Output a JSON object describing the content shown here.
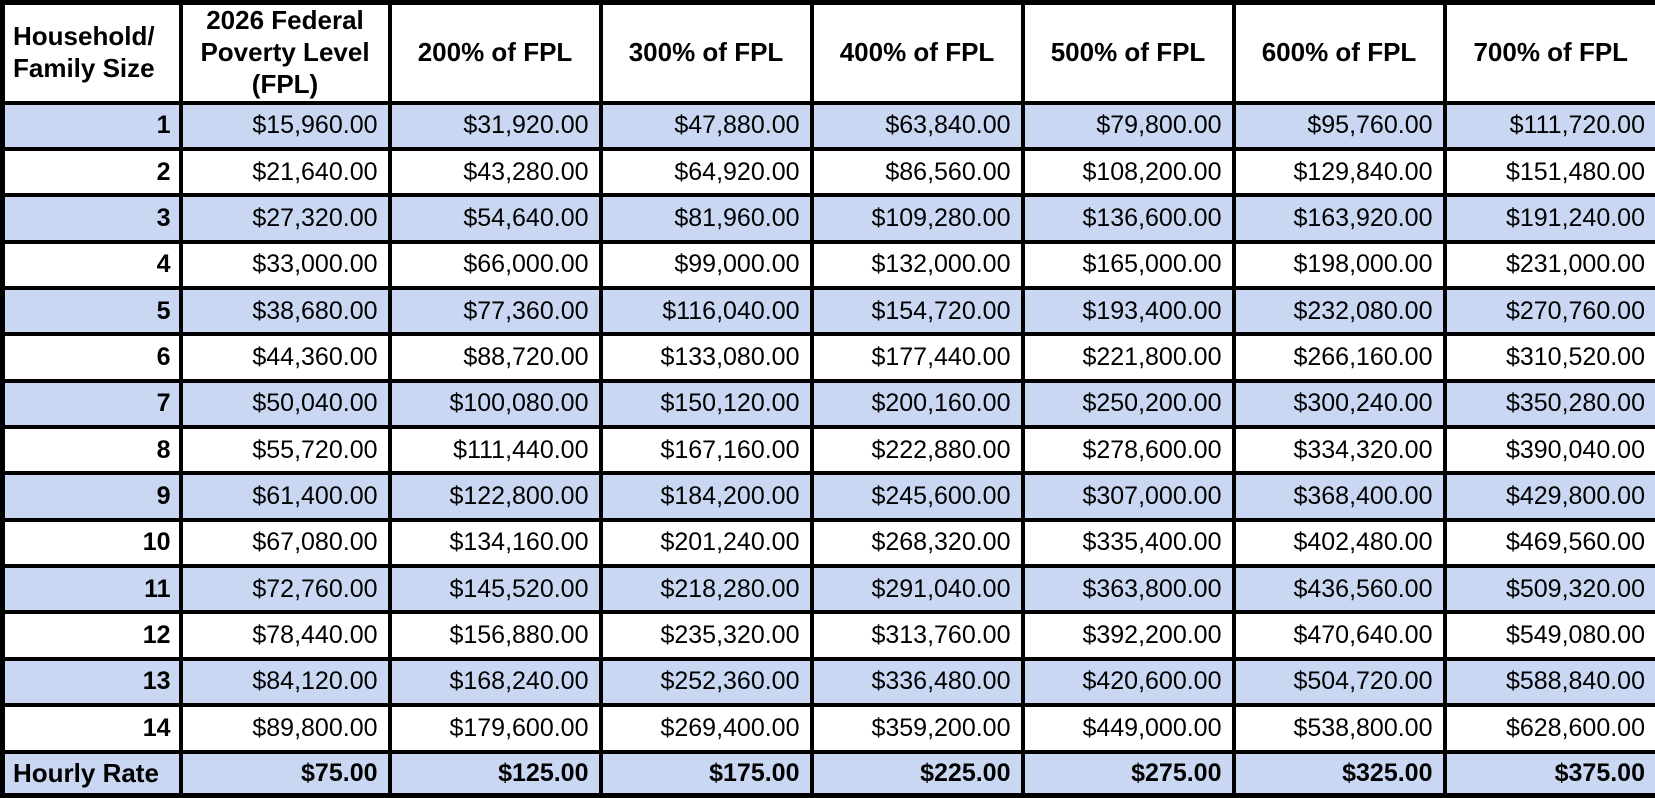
{
  "table": {
    "headers": [
      "Household/\nFamily Size",
      "2026 Federal\nPoverty Level\n(FPL)",
      "200% of FPL",
      "300% of FPL",
      "400% of FPL",
      "500% of FPL",
      "600% of FPL",
      "700% of FPL"
    ],
    "header_names": [
      "household-family-size",
      "fpl-2026",
      "fpl-200pct",
      "fpl-300pct",
      "fpl-400pct",
      "fpl-500pct",
      "fpl-600pct",
      "fpl-700pct"
    ],
    "rows": [
      {
        "size": "1",
        "values": [
          "$15,960.00",
          "$31,920.00",
          "$47,880.00",
          "$63,840.00",
          "$79,800.00",
          "$95,760.00",
          "$111,720.00"
        ]
      },
      {
        "size": "2",
        "values": [
          "$21,640.00",
          "$43,280.00",
          "$64,920.00",
          "$86,560.00",
          "$108,200.00",
          "$129,840.00",
          "$151,480.00"
        ]
      },
      {
        "size": "3",
        "values": [
          "$27,320.00",
          "$54,640.00",
          "$81,960.00",
          "$109,280.00",
          "$136,600.00",
          "$163,920.00",
          "$191,240.00"
        ]
      },
      {
        "size": "4",
        "values": [
          "$33,000.00",
          "$66,000.00",
          "$99,000.00",
          "$132,000.00",
          "$165,000.00",
          "$198,000.00",
          "$231,000.00"
        ]
      },
      {
        "size": "5",
        "values": [
          "$38,680.00",
          "$77,360.00",
          "$116,040.00",
          "$154,720.00",
          "$193,400.00",
          "$232,080.00",
          "$270,760.00"
        ]
      },
      {
        "size": "6",
        "values": [
          "$44,360.00",
          "$88,720.00",
          "$133,080.00",
          "$177,440.00",
          "$221,800.00",
          "$266,160.00",
          "$310,520.00"
        ]
      },
      {
        "size": "7",
        "values": [
          "$50,040.00",
          "$100,080.00",
          "$150,120.00",
          "$200,160.00",
          "$250,200.00",
          "$300,240.00",
          "$350,280.00"
        ]
      },
      {
        "size": "8",
        "values": [
          "$55,720.00",
          "$111,440.00",
          "$167,160.00",
          "$222,880.00",
          "$278,600.00",
          "$334,320.00",
          "$390,040.00"
        ]
      },
      {
        "size": "9",
        "values": [
          "$61,400.00",
          "$122,800.00",
          "$184,200.00",
          "$245,600.00",
          "$307,000.00",
          "$368,400.00",
          "$429,800.00"
        ]
      },
      {
        "size": "10",
        "values": [
          "$67,080.00",
          "$134,160.00",
          "$201,240.00",
          "$268,320.00",
          "$335,400.00",
          "$402,480.00",
          "$469,560.00"
        ]
      },
      {
        "size": "11",
        "values": [
          "$72,760.00",
          "$145,520.00",
          "$218,280.00",
          "$291,040.00",
          "$363,800.00",
          "$436,560.00",
          "$509,320.00"
        ]
      },
      {
        "size": "12",
        "values": [
          "$78,440.00",
          "$156,880.00",
          "$235,320.00",
          "$313,760.00",
          "$392,200.00",
          "$470,640.00",
          "$549,080.00"
        ]
      },
      {
        "size": "13",
        "values": [
          "$84,120.00",
          "$168,240.00",
          "$252,360.00",
          "$336,480.00",
          "$420,600.00",
          "$504,720.00",
          "$588,840.00"
        ]
      },
      {
        "size": "14",
        "values": [
          "$89,800.00",
          "$179,600.00",
          "$269,400.00",
          "$359,200.00",
          "$449,000.00",
          "$538,800.00",
          "$628,600.00"
        ]
      }
    ],
    "footer": {
      "label": "Hourly Rate",
      "values": [
        "$75.00",
        "$125.00",
        "$175.00",
        "$225.00",
        "$275.00",
        "$325.00",
        "$375.00"
      ]
    }
  },
  "colors": {
    "stripe_fill": "#c9d7f3",
    "border": "#000000",
    "text": "#000000",
    "background": "#ffffff"
  }
}
